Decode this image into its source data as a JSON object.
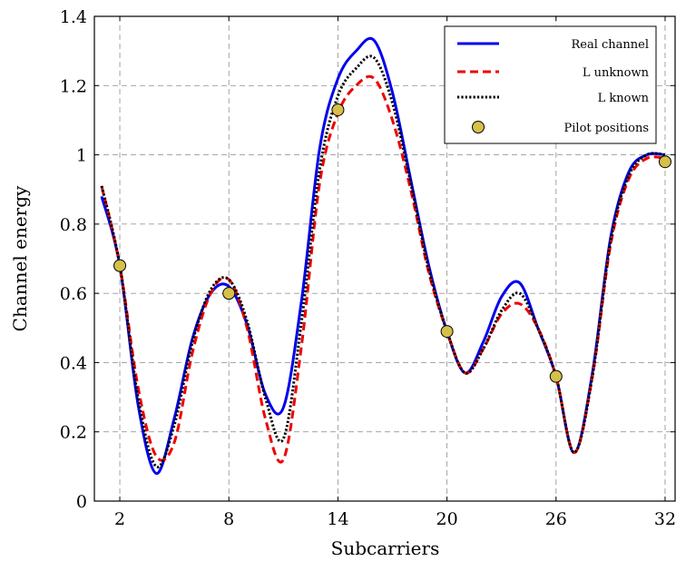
{
  "chart_data": {
    "type": "line",
    "xlabel": "Subcarriers",
    "ylabel": "Channel energy",
    "xlim": [
      0.6,
      32.6
    ],
    "ylim": [
      0,
      1.4
    ],
    "xticks": [
      2,
      8,
      14,
      20,
      26,
      32
    ],
    "xtick_labels": [
      "2",
      "8",
      "14",
      "20",
      "26",
      "32"
    ],
    "yticks": [
      0,
      0.2,
      0.4,
      0.6,
      0.8,
      1.0,
      1.2,
      1.4
    ],
    "ytick_labels": [
      "0",
      "0.2",
      "0.4",
      "0.6",
      "0.8",
      "1",
      "1.2",
      "1.4"
    ],
    "grid": true,
    "legend_position": "top-right",
    "series": [
      {
        "name": "Real channel",
        "style": "solid",
        "color": "#0000ee",
        "x": [
          1,
          2,
          3,
          4,
          5,
          6,
          7,
          8,
          9,
          10,
          11,
          12,
          13,
          14,
          15,
          16,
          17,
          18,
          19,
          20,
          21,
          22,
          23,
          24,
          25,
          26,
          27,
          28,
          29,
          30,
          31,
          32
        ],
        "y": [
          0.88,
          0.68,
          0.28,
          0.08,
          0.24,
          0.47,
          0.6,
          0.62,
          0.51,
          0.31,
          0.27,
          0.58,
          1.02,
          1.22,
          1.3,
          1.33,
          1.18,
          0.93,
          0.68,
          0.49,
          0.37,
          0.46,
          0.59,
          0.63,
          0.5,
          0.36,
          0.14,
          0.37,
          0.76,
          0.95,
          1.0,
          1.0
        ]
      },
      {
        "name": "L unknown",
        "style": "dashed",
        "color": "#ee0000",
        "x": [
          1,
          2,
          3,
          4,
          5,
          6,
          7,
          8,
          9,
          10,
          11,
          12,
          13,
          14,
          15,
          16,
          17,
          18,
          19,
          20,
          21,
          22,
          23,
          24,
          25,
          26,
          27,
          28,
          29,
          30,
          31,
          32
        ],
        "y": [
          0.91,
          0.68,
          0.33,
          0.13,
          0.17,
          0.43,
          0.6,
          0.64,
          0.5,
          0.24,
          0.12,
          0.45,
          0.92,
          1.12,
          1.2,
          1.22,
          1.1,
          0.9,
          0.66,
          0.49,
          0.37,
          0.44,
          0.54,
          0.57,
          0.5,
          0.36,
          0.14,
          0.36,
          0.74,
          0.93,
          0.99,
          0.99
        ]
      },
      {
        "name": "L known",
        "style": "dotted",
        "color": "#000000",
        "x": [
          1,
          2,
          3,
          4,
          5,
          6,
          7,
          8,
          9,
          10,
          11,
          12,
          13,
          14,
          15,
          16,
          17,
          18,
          19,
          20,
          21,
          22,
          23,
          24,
          25,
          26,
          27,
          28,
          29,
          30,
          31,
          32
        ],
        "y": [
          0.91,
          0.68,
          0.3,
          0.1,
          0.22,
          0.46,
          0.61,
          0.64,
          0.52,
          0.3,
          0.18,
          0.52,
          0.96,
          1.17,
          1.25,
          1.28,
          1.15,
          0.92,
          0.67,
          0.49,
          0.37,
          0.44,
          0.55,
          0.6,
          0.5,
          0.36,
          0.14,
          0.36,
          0.75,
          0.94,
          1.0,
          1.0
        ]
      }
    ],
    "pilots": {
      "name": "Pilot positions",
      "color": "#d4c04a",
      "x": [
        2,
        8,
        14,
        20,
        26,
        32
      ],
      "y": [
        0.68,
        0.6,
        1.13,
        0.49,
        0.36,
        0.98
      ]
    }
  }
}
